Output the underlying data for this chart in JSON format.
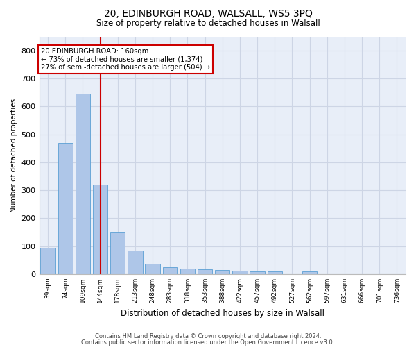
{
  "title": "20, EDINBURGH ROAD, WALSALL, WS5 3PQ",
  "subtitle": "Size of property relative to detached houses in Walsall",
  "xlabel": "Distribution of detached houses by size in Walsall",
  "ylabel": "Number of detached properties",
  "categories": [
    "39sqm",
    "74sqm",
    "109sqm",
    "144sqm",
    "178sqm",
    "213sqm",
    "248sqm",
    "283sqm",
    "318sqm",
    "353sqm",
    "388sqm",
    "422sqm",
    "457sqm",
    "492sqm",
    "527sqm",
    "562sqm",
    "597sqm",
    "631sqm",
    "666sqm",
    "701sqm",
    "736sqm"
  ],
  "values": [
    95,
    470,
    645,
    320,
    150,
    85,
    38,
    25,
    20,
    18,
    15,
    12,
    10,
    10,
    0,
    10,
    0,
    0,
    0,
    0,
    0
  ],
  "bar_color": "#aec6e8",
  "bar_edge_color": "#5a9fd4",
  "vline_pos": 3,
  "vline_color": "#cc0000",
  "annotation_lines": [
    "20 EDINBURGH ROAD: 160sqm",
    "← 73% of detached houses are smaller (1,374)",
    "27% of semi-detached houses are larger (504) →"
  ],
  "annotation_box_color": "#cc0000",
  "annotation_bg": "#ffffff",
  "ylim": [
    0,
    850
  ],
  "yticks": [
    0,
    100,
    200,
    300,
    400,
    500,
    600,
    700,
    800
  ],
  "grid_color": "#cdd5e5",
  "background_color": "#e8eef8",
  "footer_line1": "Contains HM Land Registry data © Crown copyright and database right 2024.",
  "footer_line2": "Contains public sector information licensed under the Open Government Licence v3.0."
}
